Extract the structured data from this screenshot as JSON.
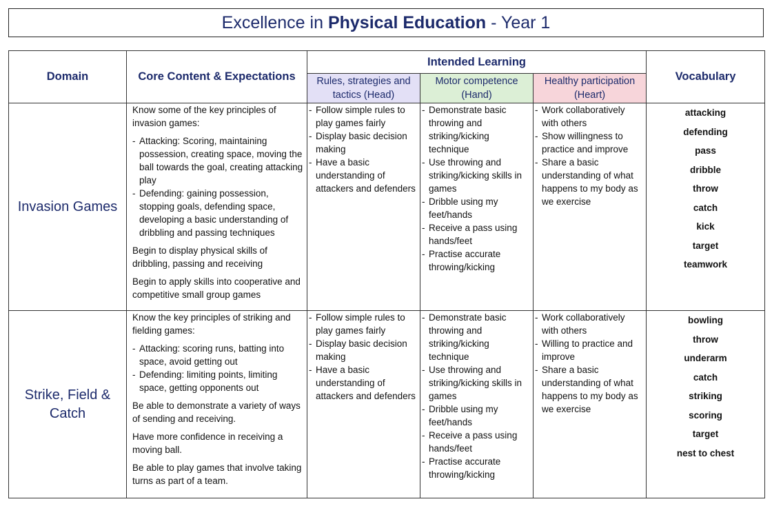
{
  "header": {
    "title": {
      "prefix": "Excellence in",
      "emphasis": "Physical Education",
      "suffix": "- Year 1"
    }
  },
  "table": {
    "columns": {
      "domain": "Domain",
      "core": "Core Content & Expectations",
      "intended": "Intended Learning",
      "vocabulary": "Vocabulary",
      "sub": [
        {
          "label": "Rules, strategies and tactics (Head)"
        },
        {
          "label": "Motor competence (Hand)"
        },
        {
          "label": "Healthy participation (Heart)"
        }
      ]
    },
    "rows": [
      {
        "domain": "Invasion Games",
        "core": [
          {
            "text": "Know some of the key principles of invasion games:"
          },
          {
            "items": [
              "Attacking: Scoring, maintaining possession, creating space, moving the ball towards the goal, creating attacking play",
              "Defending: gaining possession, stopping goals, defending space, developing a basic understanding of dribbling and passing techniques"
            ]
          },
          {
            "text": "Begin to display physical skills of dribbling, passing and receiving"
          },
          {
            "text": "Begin to apply skills into cooperative and competitive small group games"
          }
        ],
        "head": [
          "Follow simple rules to play games fairly",
          "Display basic decision making",
          "Have a basic understanding of attackers and defenders"
        ],
        "hand": [
          "Demonstrate basic throwing and striking/kicking technique",
          "Use throwing and striking/kicking skills in games",
          "Dribble using my feet/hands",
          "Receive a pass using hands/feet",
          "Practise accurate throwing/kicking"
        ],
        "heart": [
          "Work collaboratively with others",
          "Show willingness to practice and improve",
          "Share a basic understanding of what happens to my body as we exercise"
        ],
        "vocabulary": [
          "attacking",
          "defending",
          "pass",
          "dribble",
          "throw",
          "catch",
          "kick",
          "target",
          "teamwork"
        ]
      },
      {
        "domain": "Strike, Field & Catch",
        "core": [
          {
            "text": "Know the key principles of striking and fielding games:"
          },
          {
            "items": [
              "Attacking: scoring runs, batting into space, avoid getting out",
              "Defending: limiting points, limiting space, getting opponents out"
            ]
          },
          {
            "text": "Be able to demonstrate a variety of ways of sending and receiving."
          },
          {
            "text": "Have more confidence in receiving a moving ball."
          },
          {
            "text": "Be able to play games that involve taking turns as part of a team."
          }
        ],
        "head": [
          "Follow simple rules to play games fairly",
          "Display basic decision making",
          "Have a basic understanding of attackers and defenders"
        ],
        "hand": [
          "Demonstrate basic throwing and striking/kicking technique",
          "Use throwing and striking/kicking skills in games",
          "Dribble using my feet/hands",
          "Receive a pass using hands/feet",
          "Practise accurate throwing/kicking"
        ],
        "heart": [
          "Work collaboratively with others",
          "Willing to practice and improve",
          "Share a basic understanding of what happens to my body as we exercise"
        ],
        "vocabulary": [
          "bowling",
          "throw",
          "underarm",
          "catch",
          "striking",
          "scoring",
          "target",
          "nest to chest"
        ]
      }
    ]
  }
}
